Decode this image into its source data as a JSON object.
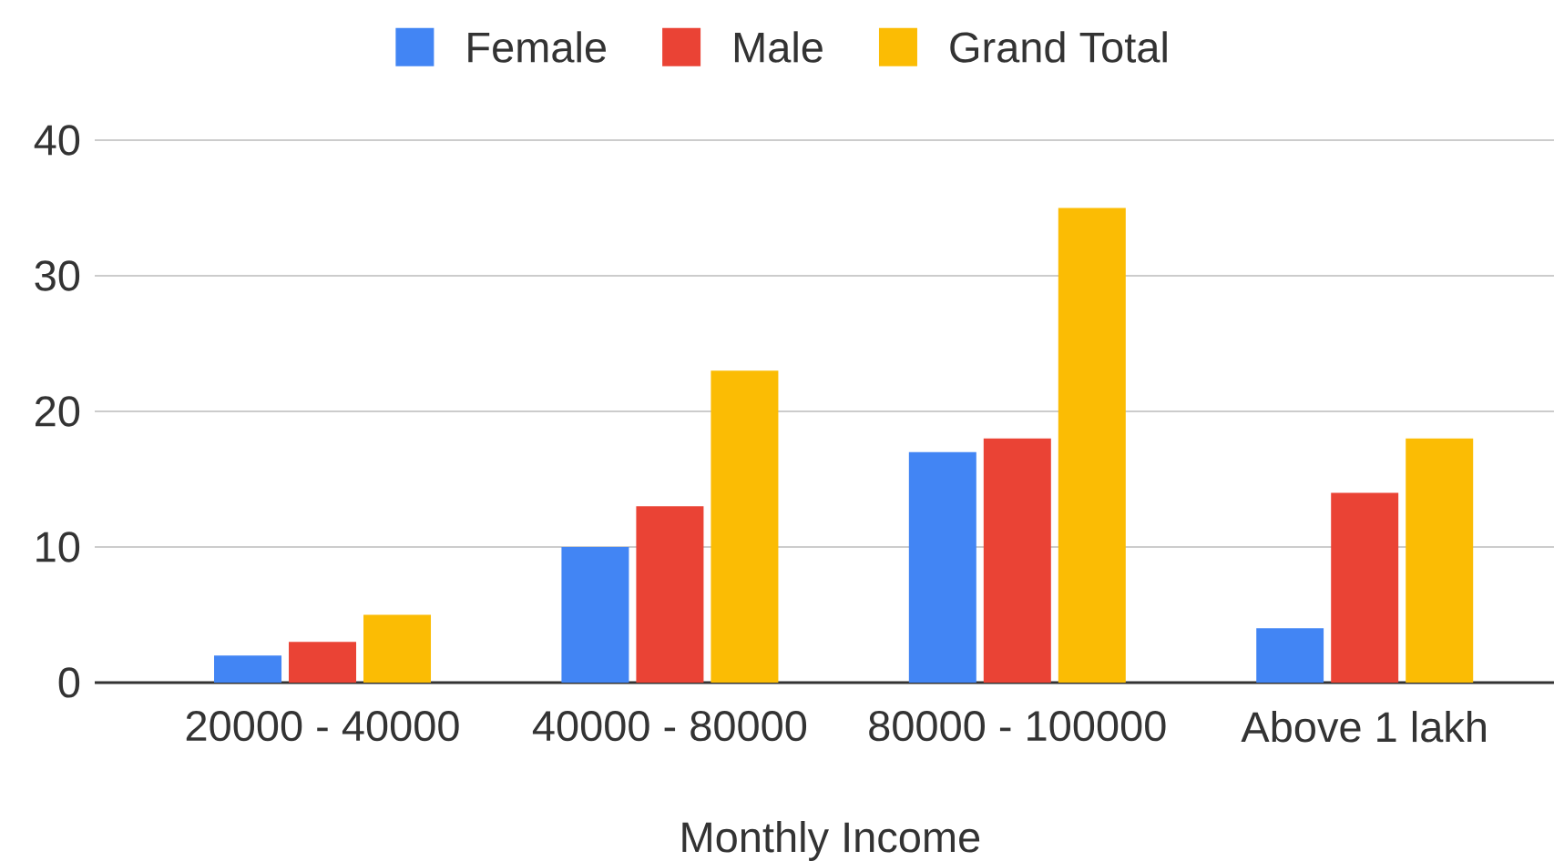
{
  "chart_data": {
    "type": "bar",
    "xlabel": "Monthly Income",
    "categories": [
      "20000 - 40000",
      "40000 - 80000",
      "80000 - 100000",
      "Above 1 lakh"
    ],
    "series": [
      {
        "name": "Female",
        "color": "#4285f4",
        "values": [
          2,
          10,
          17,
          4
        ]
      },
      {
        "name": "Male",
        "color": "#ea4335",
        "values": [
          3,
          13,
          18,
          14
        ]
      },
      {
        "name": "Grand Total",
        "color": "#fbbc04",
        "values": [
          5,
          23,
          35,
          18
        ]
      }
    ],
    "ylim": [
      0,
      40
    ],
    "yticks": [
      0,
      10,
      20,
      30,
      40
    ],
    "grid": "y",
    "legend": "top"
  }
}
